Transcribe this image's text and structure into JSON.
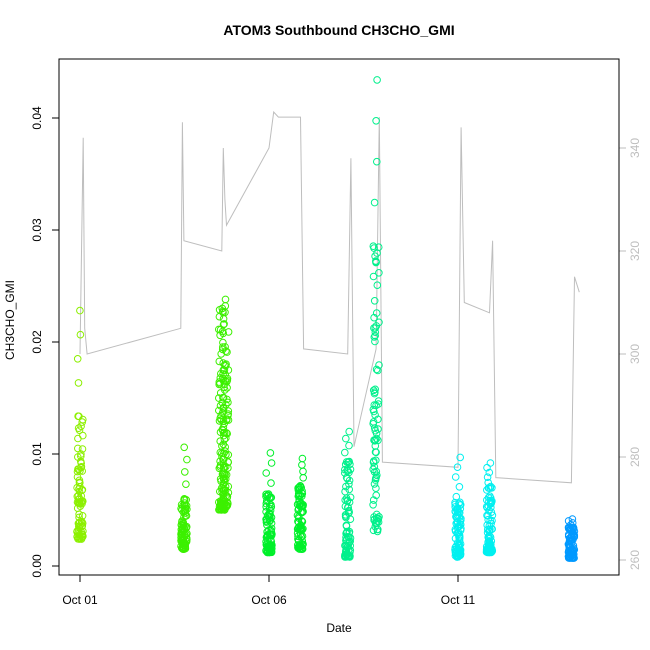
{
  "chart_data": {
    "type": "scatter",
    "title": "ATOM3 Southbound CH3CHO_GMI",
    "xlabel": "Date",
    "ylabel": "CH3CHO_GMI",
    "x_ticks": [
      {
        "date": "2017-10-01",
        "label": "Oct 01"
      },
      {
        "date": "2017-10-06",
        "label": "Oct 06"
      },
      {
        "date": "2017-10-11",
        "label": "Oct 11"
      }
    ],
    "xlim": [
      "2017-10-01",
      "2017-10-14.4"
    ],
    "ylim": [
      0,
      0.045
    ],
    "y_ticks": [
      0.0,
      0.01,
      0.02,
      0.03,
      0.04
    ],
    "y_tick_labels": [
      "0.00",
      "0.01",
      "0.02",
      "0.03",
      "0.04"
    ],
    "y2lim": [
      260,
      346
    ],
    "y2_ticks": [
      260,
      280,
      300,
      320,
      340
    ],
    "y2_tick_labels": [
      "260",
      "280",
      "300",
      "320",
      "340"
    ],
    "grid": false,
    "series": [
      {
        "color": "#8CF000",
        "marker": "circle",
        "flights": [
          {
            "date": "2017-10-01 00:00",
            "min": 0.0024,
            "max": 0.0228,
            "dense_max": 0.0142
          }
        ]
      },
      {
        "color": "#3CF000",
        "marker": "circle",
        "flights": [
          {
            "date": "2017-10-03 18:00",
            "min": 0.0015,
            "max": 0.0106,
            "dense_max": 0.0062
          },
          {
            "date": "2017-10-04 18:00",
            "min": 0.005,
            "max": 0.023,
            "dense_max": 0.0225
          },
          {
            "date": "2017-10-04 20:30",
            "min": 0.005,
            "max": 0.0238,
            "dense_max": 0.0215
          }
        ]
      },
      {
        "color": "#00F02A",
        "marker": "circle",
        "flights": [
          {
            "date": "2017-10-06 00:00",
            "min": 0.0012,
            "max": 0.0101,
            "dense_max": 0.0065
          },
          {
            "date": "2017-10-06 20:00",
            "min": 0.0015,
            "max": 0.0096,
            "dense_max": 0.0073
          }
        ]
      },
      {
        "color": "#00F08C",
        "marker": "circle",
        "flights": [
          {
            "date": "2017-10-08 02:00",
            "min": 0.0008,
            "max": 0.012,
            "dense_max": 0.0095
          },
          {
            "date": "2017-10-08 20:00",
            "min": 0.003,
            "max": 0.0434,
            "dense_max": 0.0288
          }
        ]
      },
      {
        "color": "#00F0F0",
        "marker": "circle",
        "flights": [
          {
            "date": "2017-10-11 00:00",
            "min": 0.0008,
            "max": 0.0097,
            "dense_max": 0.0062
          },
          {
            "date": "2017-10-11 20:00",
            "min": 0.0012,
            "max": 0.0092,
            "dense_max": 0.0075
          }
        ]
      },
      {
        "color": "#0099FF",
        "marker": "circle",
        "flights": [
          {
            "date": "2017-10-14 00:00",
            "min": 0.0007,
            "max": 0.0042,
            "dense_max": 0.0035
          }
        ]
      }
    ],
    "overlay": {
      "color": "#bebebe",
      "axis": "right",
      "points": [
        {
          "date": "2017-10-01 00:00",
          "value": 300
        },
        {
          "date": "2017-10-01 02:00",
          "value": 342
        },
        {
          "date": "2017-10-01 03:00",
          "value": 305
        },
        {
          "date": "2017-10-01 04:30",
          "value": 300
        },
        {
          "date": "2017-10-03 16:00",
          "value": 305
        },
        {
          "date": "2017-10-03 17:00",
          "value": 345
        },
        {
          "date": "2017-10-03 18:00",
          "value": 322
        },
        {
          "date": "2017-10-04 18:00",
          "value": 320
        },
        {
          "date": "2017-10-04 19:00",
          "value": 340
        },
        {
          "date": "2017-10-04 20:00",
          "value": 330
        },
        {
          "date": "2017-10-04 21:00",
          "value": 325
        },
        {
          "date": "2017-10-06 00:00",
          "value": 340
        },
        {
          "date": "2017-10-06 03:00",
          "value": 347
        },
        {
          "date": "2017-10-06 06:00",
          "value": 346
        },
        {
          "date": "2017-10-06 20:00",
          "value": 346
        },
        {
          "date": "2017-10-06 22:00",
          "value": 301
        },
        {
          "date": "2017-10-08 02:00",
          "value": 300
        },
        {
          "date": "2017-10-08 04:00",
          "value": 338
        },
        {
          "date": "2017-10-08 06:00",
          "value": 282
        },
        {
          "date": "2017-10-08 20:00",
          "value": 301
        },
        {
          "date": "2017-10-08 22:00",
          "value": 346
        },
        {
          "date": "2017-10-09 00:00",
          "value": 279
        },
        {
          "date": "2017-10-11 00:00",
          "value": 278
        },
        {
          "date": "2017-10-11 02:00",
          "value": 344
        },
        {
          "date": "2017-10-11 04:00",
          "value": 310
        },
        {
          "date": "2017-10-11 20:00",
          "value": 308
        },
        {
          "date": "2017-10-11 22:00",
          "value": 322
        },
        {
          "date": "2017-10-12 00:00",
          "value": 276
        },
        {
          "date": "2017-10-14 00:00",
          "value": 275
        },
        {
          "date": "2017-10-14 02:00",
          "value": 315
        },
        {
          "date": "2017-10-14 05:00",
          "value": 312
        }
      ]
    }
  }
}
